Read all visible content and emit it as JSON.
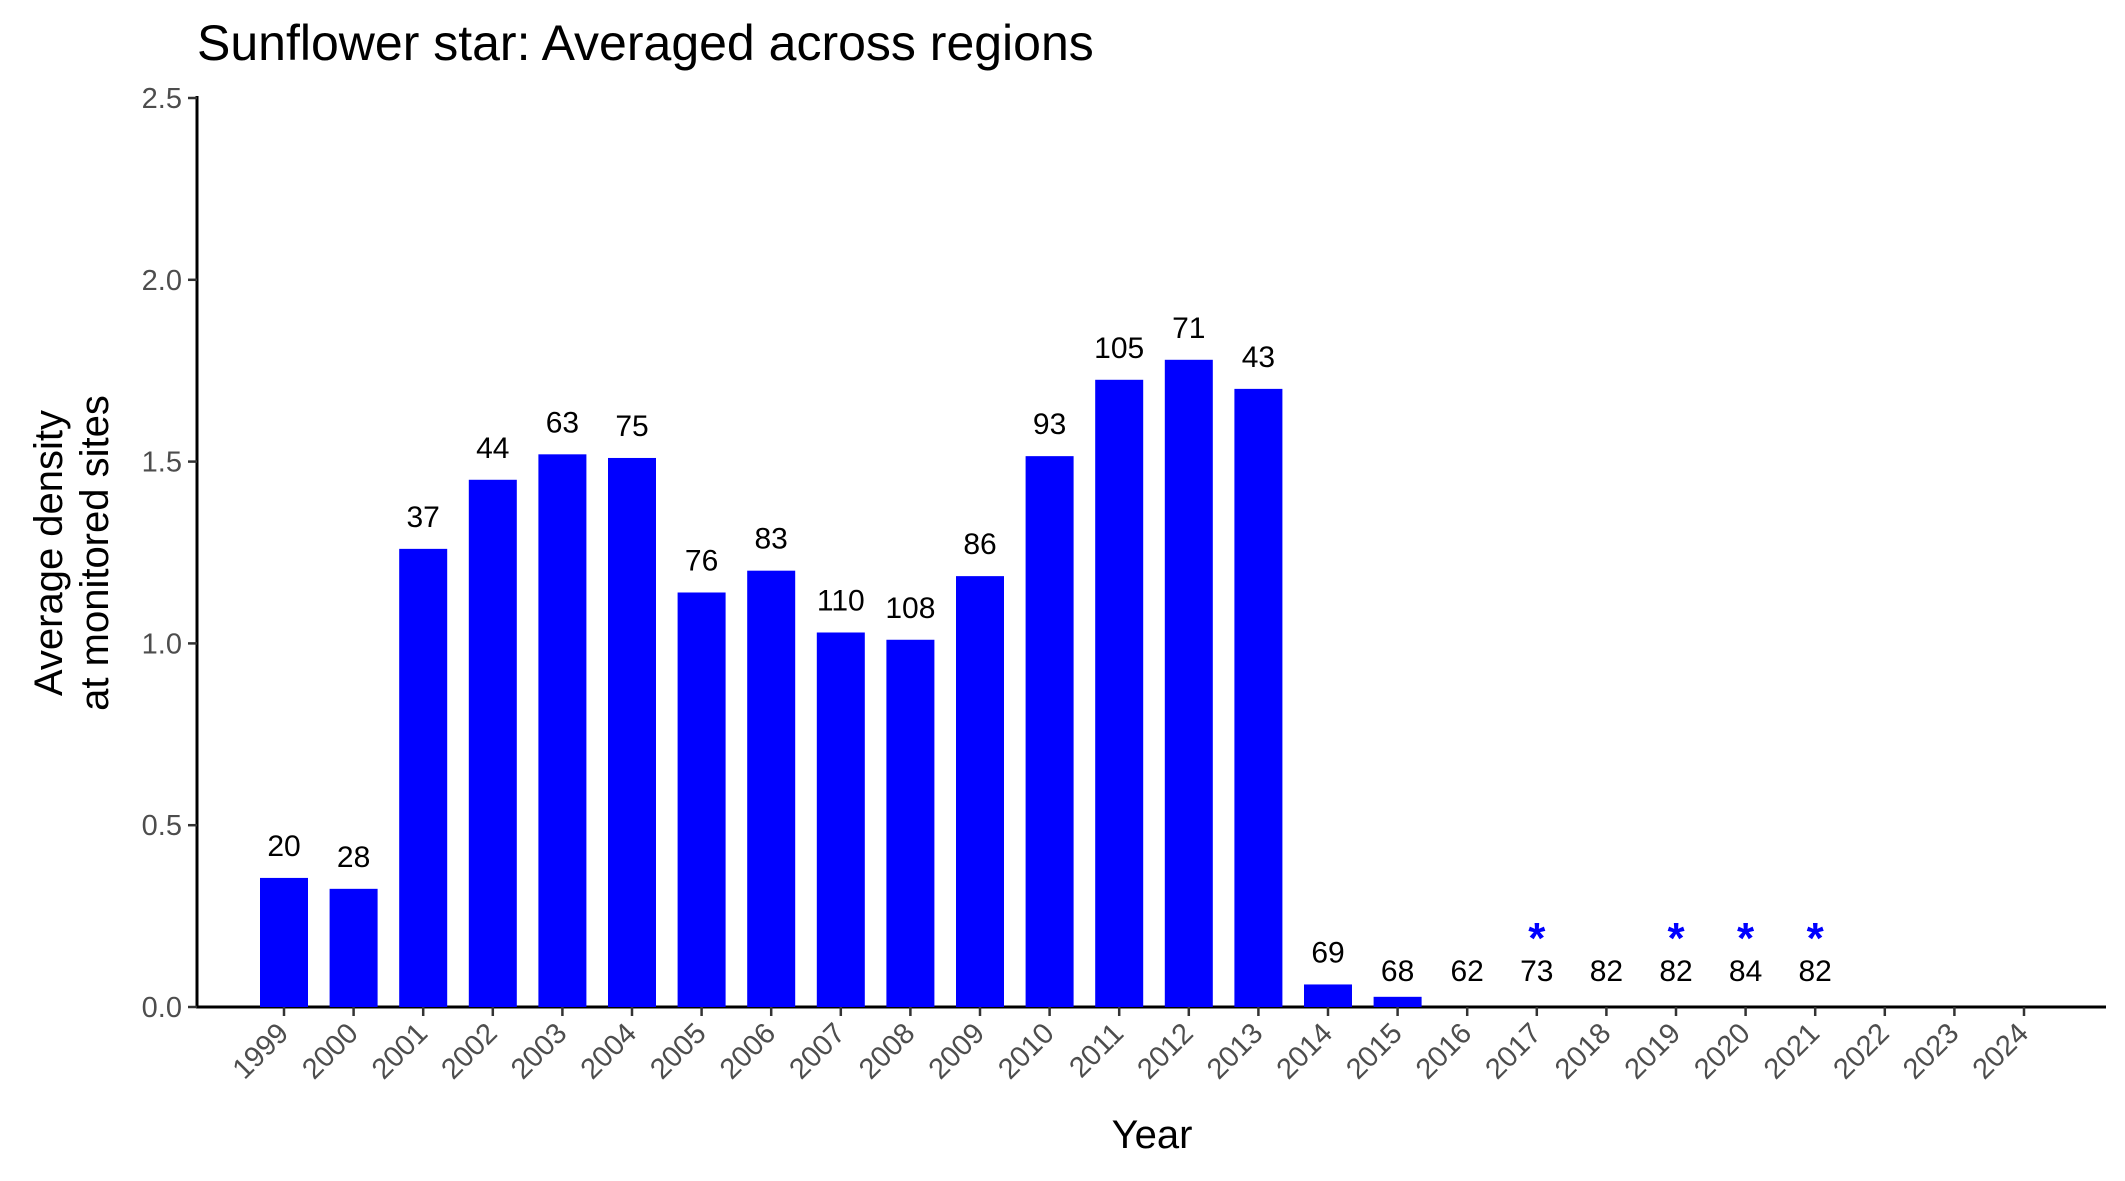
{
  "chart_data": {
    "type": "bar",
    "title": "Sunflower star: Averaged across regions",
    "xlabel": "Year",
    "ylabel_lines": [
      "Average density",
      "at monitored sites"
    ],
    "ylim": [
      0,
      2.5
    ],
    "yticks": [
      "0.0",
      "0.5",
      "1.0",
      "1.5",
      "2.0",
      "2.5"
    ],
    "bar_color": "#0000ff",
    "asterisk_color": "#0000ff",
    "grid": false,
    "legend": "none",
    "categories": [
      "1999",
      "2000",
      "2001",
      "2002",
      "2003",
      "2004",
      "2005",
      "2006",
      "2007",
      "2008",
      "2009",
      "2010",
      "2011",
      "2012",
      "2013",
      "2014",
      "2015",
      "2016",
      "2017",
      "2018",
      "2019",
      "2020",
      "2021",
      "2022",
      "2023",
      "2024"
    ],
    "values": [
      0.355,
      0.325,
      1.26,
      1.45,
      1.52,
      1.51,
      1.14,
      1.2,
      1.03,
      1.01,
      1.185,
      1.515,
      1.725,
      1.78,
      1.7,
      0.062,
      0.028,
      0,
      0,
      0,
      0,
      0,
      0,
      null,
      null,
      null
    ],
    "labels": [
      "20",
      "28",
      "37",
      "44",
      "63",
      "75",
      "76",
      "83",
      "110",
      "108",
      "86",
      "93",
      "105",
      "71",
      "43",
      "69",
      "68",
      "62",
      "73",
      "82",
      "82",
      "84",
      "82",
      "",
      "",
      ""
    ],
    "asterisks": [
      false,
      false,
      false,
      false,
      false,
      false,
      false,
      false,
      false,
      false,
      false,
      false,
      false,
      false,
      false,
      false,
      false,
      false,
      true,
      false,
      true,
      true,
      true,
      false,
      false,
      false
    ],
    "asterisk_symbol": "*"
  }
}
